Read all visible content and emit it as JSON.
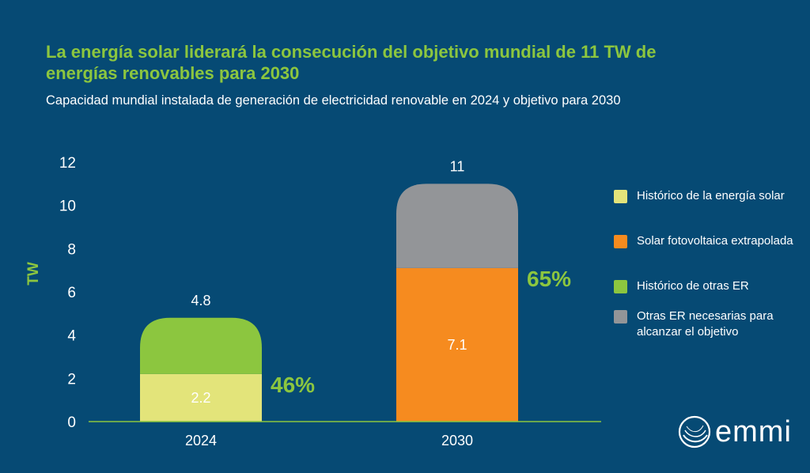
{
  "header": {
    "title": "La energía solar liderará la consecución del objetivo mundial de 11 TW de energías renovables para 2030",
    "subtitle": "Capacidad mundial instalada de generación de electricidad renovable en 2024 y objetivo para 2030"
  },
  "colors": {
    "background": "#064a74",
    "accent": "#8cc63f",
    "solar_hist": "#e3e47a",
    "solar_pv": "#f68b1f",
    "other_hist": "#8cc63f",
    "other_needed": "#939598",
    "axis": "#8cc63f",
    "text": "#ffffff"
  },
  "chart_data": {
    "type": "bar",
    "stacked": true,
    "title": "La energía solar liderará la consecución del objetivo mundial de 11 TW de energías renovables para 2030",
    "subtitle": "Capacidad mundial instalada de generación de electricidad renovable en 2024 y objetivo para 2030",
    "xlabel": "",
    "ylabel": "TW",
    "ylim": [
      0,
      12
    ],
    "yticks": [
      "0",
      "2",
      "4",
      "6",
      "8",
      "10",
      "12"
    ],
    "categories": [
      "2024",
      "2030"
    ],
    "series": [
      {
        "name": "Histórico de la energía solar",
        "color": "#e3e47a",
        "values": [
          2.2,
          0
        ]
      },
      {
        "name": "Solar fotovoltaica extrapolada",
        "color": "#f68b1f",
        "values": [
          0,
          7.1
        ]
      },
      {
        "name": "Histórico de otras ER",
        "color": "#8cc63f",
        "values": [
          2.6,
          0
        ]
      },
      {
        "name": "Otras ER necesarias para alcanzar el objetivo",
        "color": "#939598",
        "values": [
          0,
          3.9
        ]
      }
    ],
    "segment_labels": [
      "2.2",
      "7.1"
    ],
    "totals": [
      "4.8",
      "11"
    ],
    "percentages": [
      "46%",
      "65%"
    ],
    "legend_position": "right",
    "grid": false
  },
  "legend": [
    {
      "label": "Histórico de la energía solar",
      "color": "#e3e47a"
    },
    {
      "label": "Solar fotovoltaica extrapolada",
      "color": "#f68b1f"
    },
    {
      "label": "Histórico de otras ER",
      "color": "#8cc63f"
    },
    {
      "label": "Otras ER necesarias para alcanzar el objetivo",
      "color": "#939598"
    }
  ],
  "logo": {
    "text": "emmi"
  }
}
